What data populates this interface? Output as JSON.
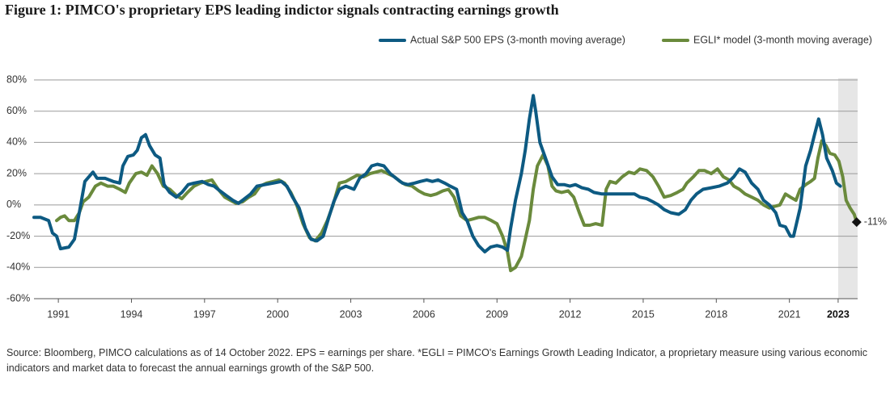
{
  "chart_data": {
    "type": "line",
    "title": "Figure 1: PIMCO's proprietary EPS leading indictor signals contracting earnings growth",
    "xlim": [
      1990,
      2023.8
    ],
    "xticks": [
      1991,
      1994,
      1997,
      2000,
      2003,
      2006,
      2009,
      2012,
      2015,
      2018,
      2021,
      2023
    ],
    "ylim": [
      -60,
      80
    ],
    "yticks": [
      {
        "value": -60,
        "label": "-60%"
      },
      {
        "value": -40,
        "label": "-40%"
      },
      {
        "value": -20,
        "label": "-20%"
      },
      {
        "value": 0,
        "label": "0%"
      },
      {
        "value": 20,
        "label": "20%"
      },
      {
        "value": 40,
        "label": "40%"
      },
      {
        "value": 60,
        "label": "60%"
      },
      {
        "value": 80,
        "label": "80%"
      }
    ],
    "grid": true,
    "legend": "top-right",
    "annotation": "-11%",
    "source": "Source: Bloomberg, PIMCO calculations as of 14 October 2022. EPS = earnings per share. *EGLI = PIMCO's Earnings Growth Leading Indicator, a proprietary measure using various economic indicators and market data to forecast the annual earnings growth of the S&P 500.",
    "series": [
      {
        "name": "Actual S&P 500 EPS (3-month moving average)",
        "color": "#0d5a82",
        "x": [
          1990.0,
          1990.27,
          1990.6,
          1990.76,
          1990.93,
          1991.09,
          1991.43,
          1991.66,
          1991.86,
          1992.09,
          1992.42,
          1992.59,
          1992.92,
          1993.25,
          1993.52,
          1993.65,
          1993.85,
          1994.08,
          1994.24,
          1994.41,
          1994.58,
          1994.74,
          1994.97,
          1995.17,
          1995.34,
          1995.57,
          1995.84,
          1996.07,
          1996.33,
          1996.57,
          1996.9,
          1997.16,
          1997.39,
          1997.63,
          1997.89,
          1998.16,
          1998.39,
          1998.56,
          1998.89,
          1999.15,
          1999.48,
          1999.82,
          2000.15,
          2000.38,
          2000.61,
          2000.88,
          2001.14,
          2001.37,
          2001.61,
          2001.87,
          2002.1,
          2002.3,
          2002.53,
          2002.8,
          2003.13,
          2003.36,
          2003.63,
          2003.86,
          2004.09,
          2004.36,
          2004.62,
          2004.86,
          2005.12,
          2005.35,
          2005.62,
          2005.85,
          2006.12,
          2006.35,
          2006.58,
          2006.85,
          2007.08,
          2007.34,
          2007.57,
          2007.77,
          2008.01,
          2008.24,
          2008.5,
          2008.74,
          2009.0,
          2009.23,
          2009.43,
          2009.56,
          2009.76,
          2010.0,
          2010.16,
          2010.33,
          2010.49,
          2010.59,
          2010.76,
          2010.99,
          2011.26,
          2011.49,
          2011.75,
          2011.99,
          2012.22,
          2012.48,
          2012.75,
          2012.98,
          2013.31,
          2013.64,
          2013.97,
          2014.31,
          2014.64,
          2014.87,
          2015.14,
          2015.4,
          2015.63,
          2015.86,
          2016.13,
          2016.46,
          2016.73,
          2016.96,
          2017.19,
          2017.46,
          2017.79,
          2018.12,
          2018.45,
          2018.72,
          2018.95,
          2019.18,
          2019.45,
          2019.71,
          2019.94,
          2020.18,
          2020.44,
          2020.61,
          2020.84,
          2021.04,
          2021.17,
          2021.44,
          2021.67,
          2021.87,
          2022.03,
          2022.2,
          2022.36,
          2022.53,
          2022.76,
          2022.93,
          2023.09
        ],
        "values": [
          -8,
          -8,
          -10,
          -18,
          -20,
          -28,
          -27,
          -22,
          -5,
          15,
          21,
          17,
          17,
          15,
          14,
          25,
          31,
          32,
          35,
          43,
          45,
          38,
          32,
          30,
          13,
          8,
          5,
          8,
          13,
          14,
          15,
          13,
          12,
          9,
          6,
          3,
          1,
          3,
          7,
          12,
          13,
          14,
          15,
          12,
          5,
          -2,
          -15,
          -22,
          -23,
          -20,
          -8,
          2,
          10,
          12,
          10,
          17,
          20,
          25,
          26,
          25,
          20,
          17,
          14,
          13,
          14,
          15,
          16,
          15,
          16,
          14,
          12,
          10,
          -5,
          -10,
          -20,
          -26,
          -30,
          -27,
          -26,
          -27,
          -29,
          -15,
          3,
          20,
          35,
          55,
          70,
          60,
          40,
          30,
          18,
          13,
          13,
          12,
          13,
          11,
          10,
          8,
          7,
          7,
          7,
          7,
          7,
          5,
          4,
          2,
          0,
          -3,
          -5,
          -6,
          -3,
          3,
          7,
          10,
          11,
          12,
          14,
          18,
          23,
          21,
          14,
          10,
          3,
          0,
          -5,
          -13,
          -14,
          -20,
          -20,
          -2,
          25,
          35,
          45,
          55,
          45,
          30,
          22,
          14,
          12
        ]
      },
      {
        "name": "EGLI* model (3-month moving average)",
        "color": "#6a8a3c",
        "x": [
          1990.93,
          1991.09,
          1991.26,
          1991.43,
          1991.66,
          1991.86,
          1992.02,
          1992.25,
          1992.52,
          1992.75,
          1993.02,
          1993.25,
          1993.52,
          1993.75,
          1993.91,
          1994.18,
          1994.41,
          1994.64,
          1994.84,
          1995.07,
          1995.31,
          1995.57,
          1995.84,
          1996.07,
          1996.3,
          1996.57,
          1996.83,
          1997.06,
          1997.3,
          1997.56,
          1997.83,
          1998.06,
          1998.29,
          1998.56,
          1998.82,
          1999.05,
          1999.28,
          1999.55,
          1999.82,
          2000.05,
          2000.28,
          2000.54,
          2000.78,
          2001.04,
          2001.31,
          2001.54,
          2001.8,
          2002.04,
          2002.27,
          2002.53,
          2002.8,
          2003.03,
          2003.26,
          2003.53,
          2003.79,
          2004.03,
          2004.26,
          2004.52,
          2004.79,
          2005.02,
          2005.25,
          2005.52,
          2005.78,
          2006.02,
          2006.28,
          2006.51,
          2006.78,
          2007.01,
          2007.24,
          2007.51,
          2007.77,
          2008.01,
          2008.24,
          2008.5,
          2008.77,
          2009.0,
          2009.23,
          2009.43,
          2009.56,
          2009.76,
          2010.0,
          2010.16,
          2010.33,
          2010.49,
          2010.66,
          2010.89,
          2011.09,
          2011.26,
          2011.42,
          2011.65,
          2011.92,
          2012.15,
          2012.38,
          2012.58,
          2012.81,
          2013.05,
          2013.31,
          2013.48,
          2013.64,
          2013.88,
          2014.14,
          2014.41,
          2014.64,
          2014.87,
          2015.14,
          2015.4,
          2015.63,
          2015.86,
          2016.13,
          2016.4,
          2016.63,
          2016.79,
          2017.06,
          2017.29,
          2017.52,
          2017.79,
          2018.05,
          2018.29,
          2018.52,
          2018.72,
          2018.95,
          2019.18,
          2019.45,
          2019.71,
          2019.94,
          2020.18,
          2020.37,
          2020.61,
          2020.84,
          2021.04,
          2021.27,
          2021.44,
          2021.67,
          2021.87,
          2022.03,
          2022.17,
          2022.33,
          2022.5,
          2022.66,
          2022.86,
          2023.03,
          2023.19,
          2023.33,
          2023.49,
          2023.66,
          2023.76
        ],
        "values": [
          -10,
          -8,
          -7,
          -10,
          -10,
          -5,
          2,
          5,
          12,
          14,
          12,
          12,
          10,
          8,
          14,
          20,
          21,
          19,
          25,
          20,
          12,
          10,
          6,
          4,
          8,
          12,
          14,
          15,
          16,
          10,
          5,
          3,
          1,
          2,
          5,
          7,
          12,
          14,
          15,
          16,
          14,
          8,
          0,
          -12,
          -21,
          -23,
          -18,
          -10,
          0,
          14,
          15,
          17,
          19,
          18,
          20,
          21,
          22,
          20,
          18,
          15,
          13,
          12,
          9,
          7,
          6,
          7,
          9,
          10,
          5,
          -7,
          -10,
          -9,
          -8,
          -8,
          -10,
          -12,
          -20,
          -30,
          -42,
          -40,
          -33,
          -22,
          -10,
          10,
          25,
          32,
          25,
          12,
          9,
          8,
          9,
          5,
          -5,
          -13,
          -13,
          -12,
          -13,
          10,
          15,
          14,
          18,
          21,
          20,
          23,
          22,
          18,
          12,
          5,
          6,
          8,
          10,
          14,
          18,
          22,
          22,
          20,
          23,
          18,
          16,
          12,
          10,
          7,
          5,
          3,
          0,
          -2,
          -1,
          0,
          7,
          5,
          3,
          10,
          13,
          15,
          17,
          30,
          41,
          38,
          33,
          32,
          28,
          18,
          3,
          -2,
          -6,
          -11
        ]
      }
    ]
  }
}
